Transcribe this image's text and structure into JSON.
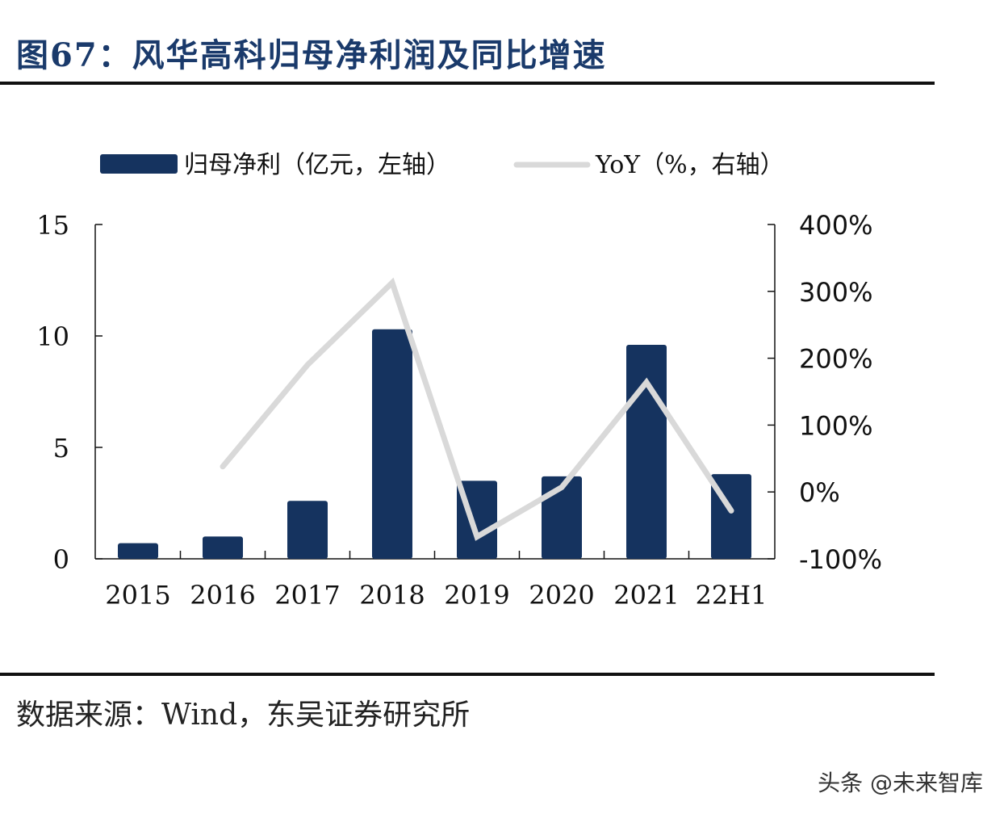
{
  "title": "图67：风华高科归母净利润及同比增速",
  "source": "数据来源：Wind，东吴证券研究所",
  "watermark": "头条 @未来智库",
  "colors": {
    "bar": "#15335f",
    "line": "#d9d9d9",
    "title": "#1a3a6b"
  },
  "chart_data": {
    "type": "bar+line",
    "categories": [
      "2015",
      "2016",
      "2017",
      "2018",
      "2019",
      "2020",
      "2021",
      "22H1"
    ],
    "series": [
      {
        "name": "归母净利（亿元，左轴）",
        "type": "bar",
        "axis": "left",
        "values": [
          0.7,
          1.0,
          2.6,
          10.3,
          3.5,
          3.7,
          9.6,
          3.8
        ]
      },
      {
        "name": "YoY（%，右轴）",
        "type": "line",
        "axis": "right",
        "values": [
          null,
          38,
          190,
          313,
          -67,
          7,
          164,
          -28
        ]
      }
    ],
    "left_axis": {
      "range": [
        0,
        15
      ],
      "ticks": [
        "0",
        "5",
        "10",
        "15"
      ]
    },
    "right_axis": {
      "range": [
        -100,
        400
      ],
      "ticks": [
        "-100%",
        "0%",
        "100%",
        "200%",
        "300%",
        "400%"
      ]
    },
    "legend_position": "top",
    "grid": false
  }
}
